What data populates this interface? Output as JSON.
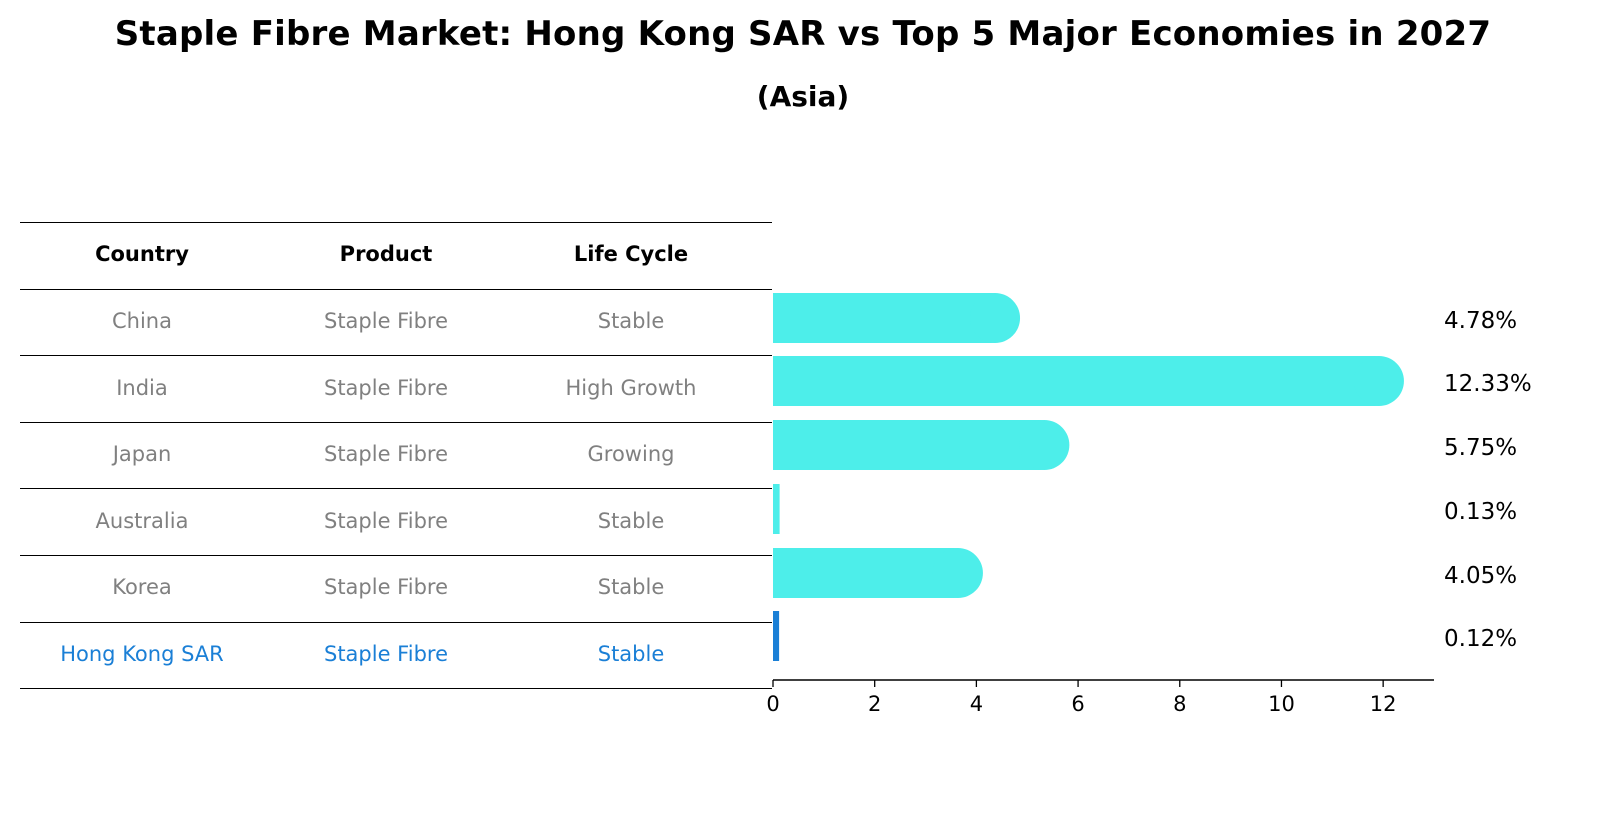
{
  "title": "Staple Fibre Market: Hong Kong SAR vs Top 5 Major Economies in 2027",
  "subtitle": "(Asia)",
  "table": {
    "headers": [
      "Country",
      "Product",
      "Life Cycle"
    ],
    "rows": [
      {
        "country": "China",
        "product": "Staple Fibre",
        "life_cycle": "Stable",
        "highlight": false
      },
      {
        "country": "India",
        "product": "Staple Fibre",
        "life_cycle": "High Growth",
        "highlight": false
      },
      {
        "country": "Japan",
        "product": "Staple Fibre",
        "life_cycle": "Growing",
        "highlight": false
      },
      {
        "country": "Australia",
        "product": "Staple Fibre",
        "life_cycle": "Stable",
        "highlight": false
      },
      {
        "country": "Korea",
        "product": "Staple Fibre",
        "life_cycle": "Stable",
        "highlight": false
      },
      {
        "country": "Hong Kong SAR",
        "product": "Staple Fibre",
        "life_cycle": "Stable",
        "highlight": true
      }
    ]
  },
  "colors": {
    "bar": "#4deeea",
    "highlight": "#1a7fd6",
    "muted_text": "#808080"
  },
  "chart_data": {
    "type": "bar",
    "orientation": "horizontal",
    "categories": [
      "China",
      "India",
      "Japan",
      "Australia",
      "Korea",
      "Hong Kong SAR"
    ],
    "values": [
      4.78,
      12.33,
      5.75,
      0.13,
      4.05,
      0.12
    ],
    "value_labels": [
      "4.78%",
      "12.33%",
      "5.75%",
      "0.13%",
      "4.05%",
      "0.12%"
    ],
    "xlim": [
      0,
      13
    ],
    "xticks": [
      0,
      2,
      4,
      6,
      8,
      10,
      12
    ],
    "xlabel": "",
    "ylabel": "",
    "grid": false,
    "highlight_category": "Hong Kong SAR"
  }
}
